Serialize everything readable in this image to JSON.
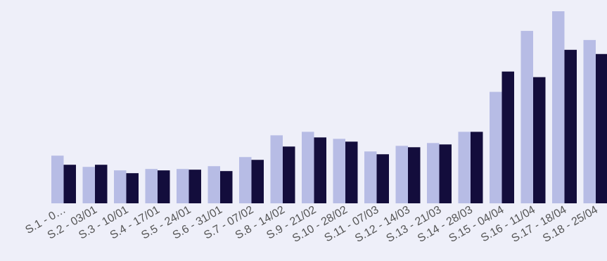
{
  "chart_data": {
    "type": "bar",
    "categories": [
      "S.1 - 0…",
      "S.2 - 03/01",
      "S.3 - 10/01",
      "S.4 - 17/01",
      "S.5 - 24/01",
      "S.6 - 31/01",
      "S.7 - 07/02",
      "S.8 - 14/02",
      "S.9 - 21/02",
      "S.10 - 28/02",
      "S.11 - 07/03",
      "S.12 - 14/03",
      "S.13 - 21/03",
      "S.14 - 28/03",
      "S.15 - 04/04",
      "S.16 - 11/04",
      "S.17 - 18/04",
      "S.18 - 25/04"
    ],
    "series": [
      {
        "values": [
          68,
          52,
          47,
          49,
          49,
          53,
          66,
          97,
          102,
          92,
          74,
          82,
          86,
          102,
          159,
          246,
          274,
          233
        ]
      },
      {
        "values": [
          55,
          55,
          43,
          47,
          48,
          46,
          62,
          81,
          94,
          88,
          70,
          80,
          84,
          102,
          188,
          180,
          219,
          213
        ]
      }
    ],
    "colors": [
      "#b7bce5",
      "#130d3c"
    ],
    "ylim": [
      0,
      274
    ],
    "grid": false,
    "legend": "none",
    "title": "",
    "xlabel": "",
    "ylabel": ""
  }
}
